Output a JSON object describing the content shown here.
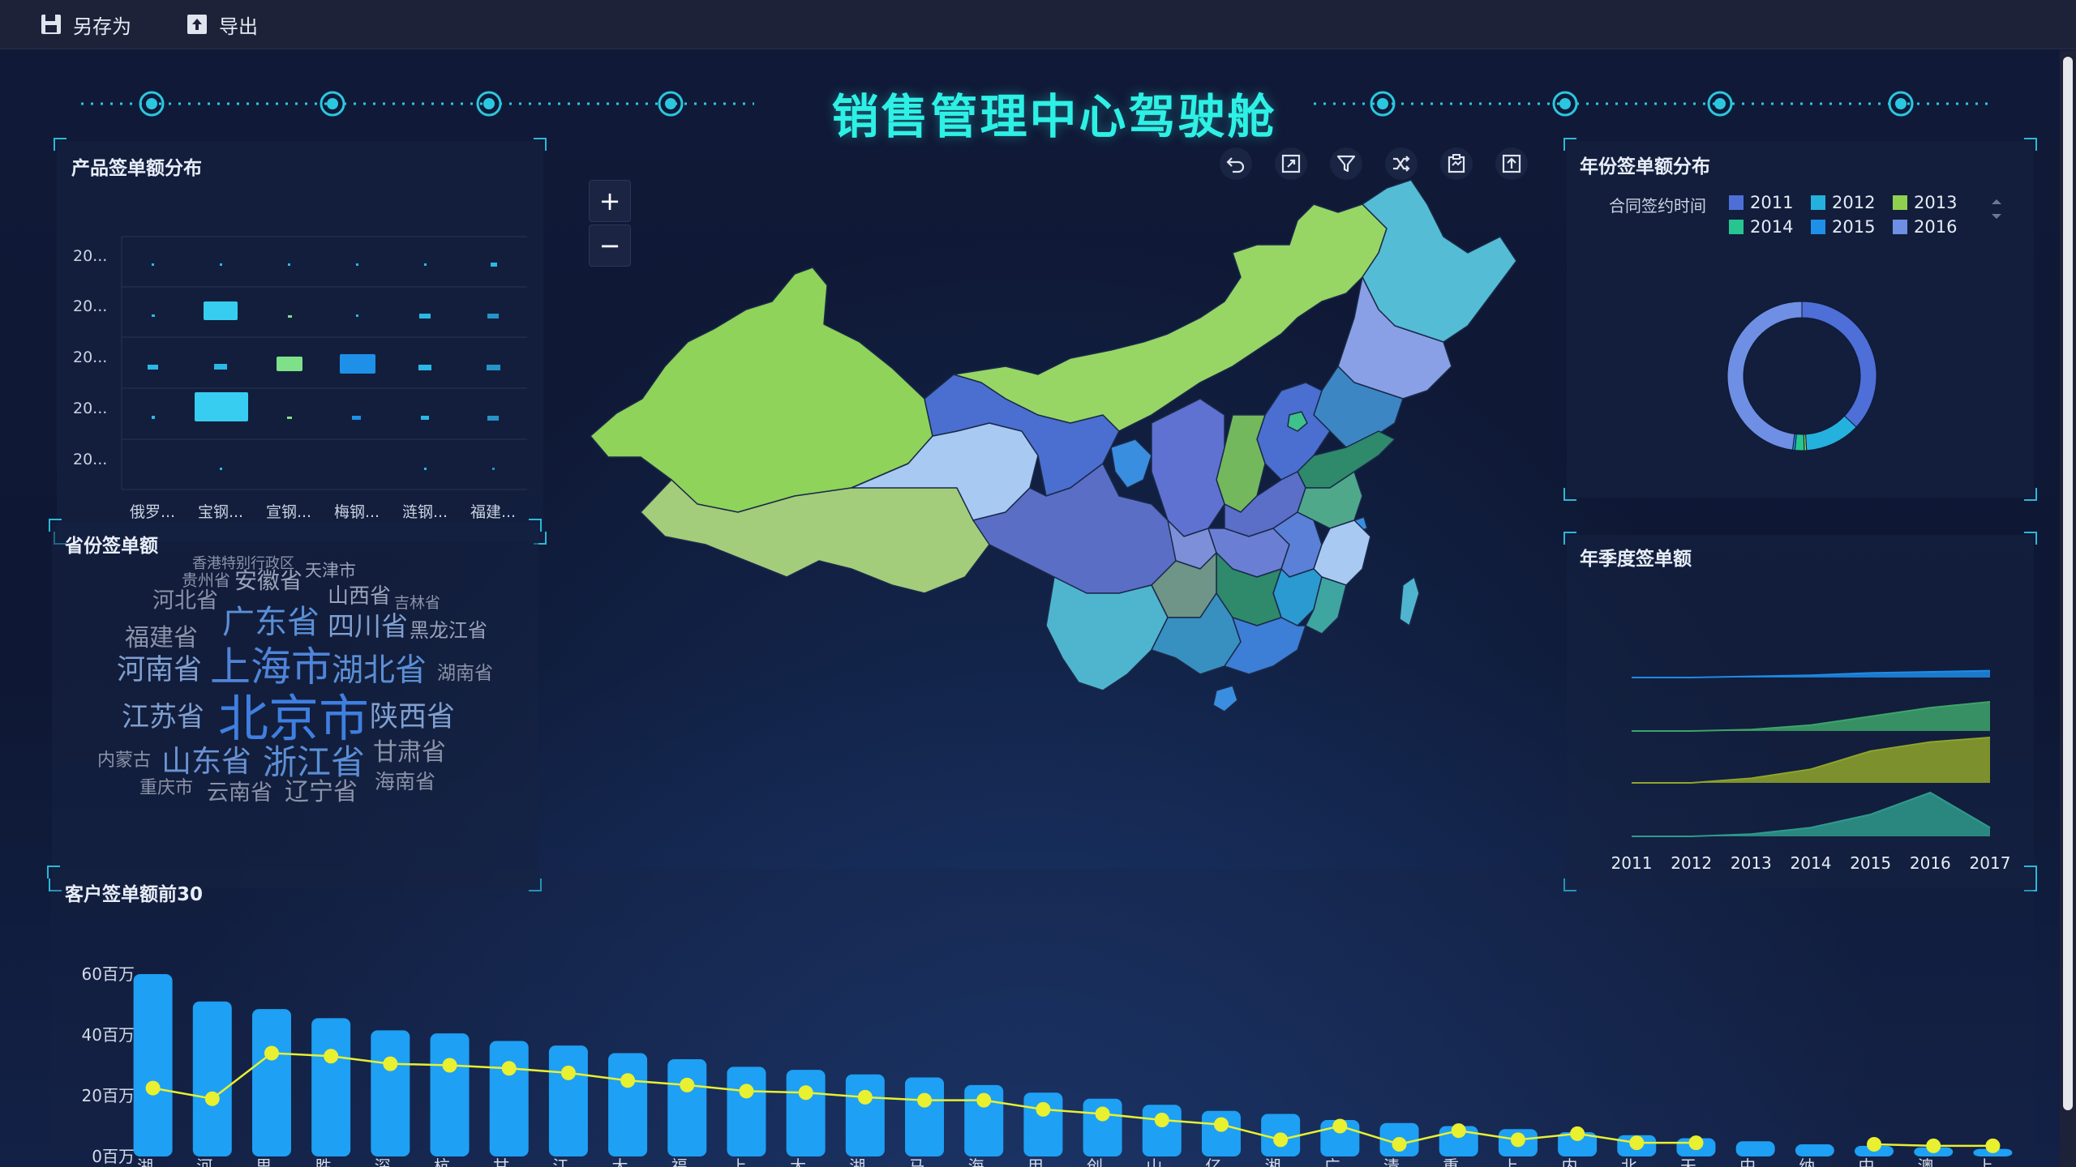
{
  "toolbar": {
    "save_as_label": "另存为",
    "export_label": "导出"
  },
  "dashboard": {
    "title": "销售管理中心驾驶舱"
  },
  "product_panel": {
    "title": "产品签单额分布",
    "y_labels": [
      "20...",
      "20...",
      "20...",
      "20...",
      "20..."
    ],
    "x_labels": [
      "俄罗...",
      "宝钢...",
      "宣钢...",
      "梅钢...",
      "涟钢...",
      "福建..."
    ]
  },
  "province_panel": {
    "title": "省份签单额",
    "words": [
      {
        "text": "香港特别行政区",
        "size": 18,
        "color": "#8a93a8"
      },
      {
        "text": "天津市",
        "size": 21,
        "color": "#9aa3b8"
      },
      {
        "text": "贵州省",
        "size": 20,
        "color": "#8a93a8"
      },
      {
        "text": "安徽省",
        "size": 28,
        "color": "#9aa3b8"
      },
      {
        "text": "河北省",
        "size": 27,
        "color": "#8a93a8"
      },
      {
        "text": "山西省",
        "size": 26,
        "color": "#9aa3b8"
      },
      {
        "text": "吉林省",
        "size": 19,
        "color": "#8a93a8"
      },
      {
        "text": "广东省",
        "size": 40,
        "color": "#5b8fd6"
      },
      {
        "text": "四川省",
        "size": 33,
        "color": "#7f9fd0"
      },
      {
        "text": "黑龙江省",
        "size": 24,
        "color": "#9aa3b8"
      },
      {
        "text": "福建省",
        "size": 30,
        "color": "#8a93a8"
      },
      {
        "text": "河南省",
        "size": 35,
        "color": "#7f9fd0"
      },
      {
        "text": "上海市",
        "size": 50,
        "color": "#4f84d8"
      },
      {
        "text": "湖北省",
        "size": 39,
        "color": "#5b8fd6"
      },
      {
        "text": "湖南省",
        "size": 23,
        "color": "#8a93a8"
      },
      {
        "text": "江苏省",
        "size": 34,
        "color": "#7f9fd0"
      },
      {
        "text": "北京市",
        "size": 62,
        "color": "#3f7fe0"
      },
      {
        "text": "陕西省",
        "size": 35,
        "color": "#7f9fd0"
      },
      {
        "text": "内蒙古",
        "size": 22,
        "color": "#8a93a8"
      },
      {
        "text": "山东省",
        "size": 37,
        "color": "#6a93d4"
      },
      {
        "text": "浙江省",
        "size": 42,
        "color": "#5b8fd6"
      },
      {
        "text": "甘肃省",
        "size": 30,
        "color": "#8a93a8"
      },
      {
        "text": "重庆市",
        "size": 22,
        "color": "#8a93a8"
      },
      {
        "text": "云南省",
        "size": 27,
        "color": "#8a93a8"
      },
      {
        "text": "辽宁省",
        "size": 30,
        "color": "#8a93a8"
      },
      {
        "text": "海南省",
        "size": 25,
        "color": "#8a93a8"
      }
    ]
  },
  "map_panel": {
    "zoom_in": "+",
    "zoom_out": "−",
    "tools": [
      "undo-icon",
      "fullscreen-icon",
      "filter-icon",
      "shuffle-icon",
      "clipboard-icon",
      "export-icon"
    ]
  },
  "year_panel": {
    "title": "年份签单额分布",
    "legend_title": "合同签约时间",
    "legend": [
      {
        "name": "2011",
        "color": "#4e6fd8"
      },
      {
        "name": "2012",
        "color": "#24b1de"
      },
      {
        "name": "2013",
        "color": "#8fd14f"
      },
      {
        "name": "2014",
        "color": "#27c590"
      },
      {
        "name": "2015",
        "color": "#1e90e8"
      },
      {
        "name": "2016",
        "color": "#6e8fe3"
      }
    ]
  },
  "quarter_panel": {
    "title": "年季度签单额"
  },
  "customer_panel": {
    "title": "客户签单额前30"
  },
  "chart_data": [
    {
      "type": "pie",
      "title": "年份签单额分布",
      "style": "donut",
      "categories": [
        "2011",
        "2012",
        "2013",
        "2014",
        "2015",
        "2016"
      ],
      "values": [
        37,
        12,
        0.5,
        2,
        0.5,
        48
      ]
    },
    {
      "type": "area",
      "title": "年季度签单额",
      "categories": [
        "2011",
        "2012",
        "2013",
        "2014",
        "2015",
        "2016",
        "2017"
      ],
      "series": [
        {
          "values": [
            0,
            0,
            0.1,
            0.2,
            0.4,
            0.5,
            0.6
          ],
          "color": "#1e8be6"
        },
        {
          "values": [
            0,
            0,
            0.05,
            0.2,
            0.5,
            0.8,
            1.0
          ],
          "color": "#3ea46a"
        },
        {
          "values": [
            0,
            0,
            0.1,
            0.3,
            0.7,
            0.9,
            1.0
          ],
          "color": "#8fa52a"
        },
        {
          "values": [
            0,
            0,
            0.05,
            0.2,
            0.5,
            1.0,
            0.2
          ],
          "color": "#2f9a8c"
        }
      ]
    },
    {
      "type": "bar",
      "title": "客户签单额前30",
      "y_ticks": [
        "0百万",
        "20百万",
        "40百万",
        "60百万"
      ],
      "ylim": [
        0,
        60
      ],
      "categories": [
        "湖...",
        "河...",
        "思...",
        "胜...",
        "深...",
        "杭...",
        "甘...",
        "江...",
        "大...",
        "福...",
        "上...",
        "大...",
        "湖...",
        "马...",
        "海...",
        "用...",
        "创...",
        "山...",
        "亿...",
        "湘...",
        "广...",
        "清...",
        "重...",
        "上...",
        "内...",
        "北...",
        "天...",
        "中...",
        "纳...",
        "中...",
        "澳...",
        "上..."
      ],
      "bar_values": [
        60,
        51,
        48.5,
        45.5,
        41.5,
        40.5,
        38,
        36.5,
        34,
        32,
        29.5,
        28.5,
        27,
        26,
        23.5,
        21,
        19,
        17,
        15,
        14,
        12,
        11,
        10,
        9,
        8,
        7,
        6,
        5,
        4,
        3.5,
        3,
        2.5
      ],
      "line_values": [
        22.5,
        19,
        34,
        33,
        30.5,
        30,
        29,
        27.5,
        25,
        23.5,
        21.5,
        21,
        19.5,
        18.5,
        18.5,
        15.5,
        14,
        12,
        10.5,
        5.5,
        10,
        4,
        8.5,
        5.5,
        7.5,
        4.5,
        4.5,
        null,
        null,
        4,
        3.5,
        3.5
      ],
      "bar_color": "#1ea0f4",
      "line_color": "#e8f030"
    }
  ]
}
